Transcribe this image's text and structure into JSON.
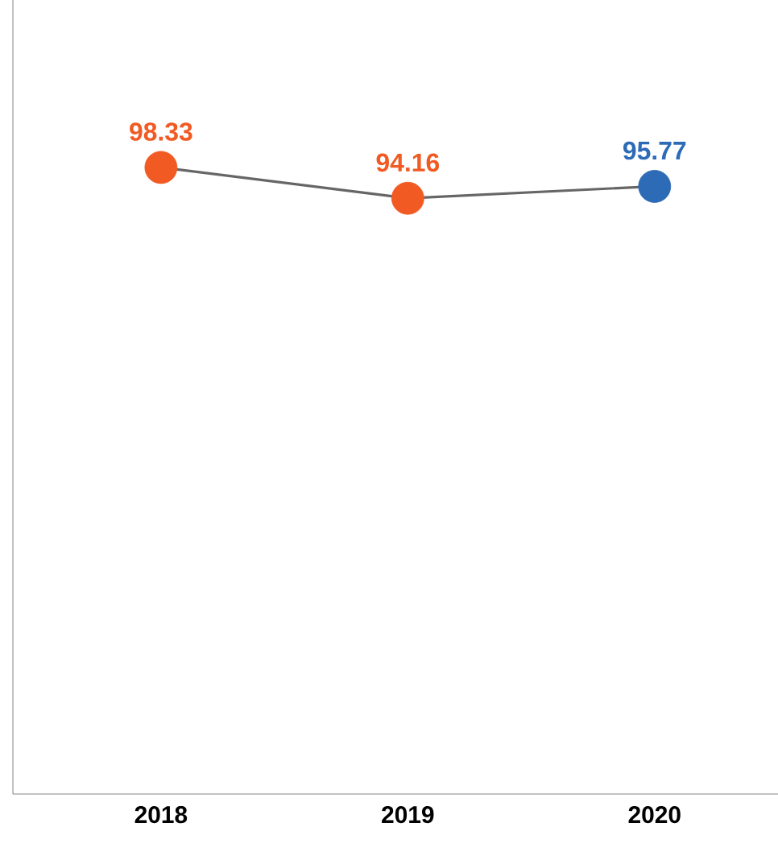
{
  "chart_data": {
    "type": "line",
    "categories": [
      "2018",
      "2019",
      "2020"
    ],
    "series": [
      {
        "color": "#666666",
        "colors": [
          "#f15a22",
          "#f15a22",
          "#2e6bb7"
        ],
        "values": [
          98.33,
          94.16,
          95.77
        ]
      }
    ],
    "ylim": [
      13.5,
      121
    ],
    "data_labels": true,
    "marker": "circle",
    "tick_labels": "x"
  }
}
